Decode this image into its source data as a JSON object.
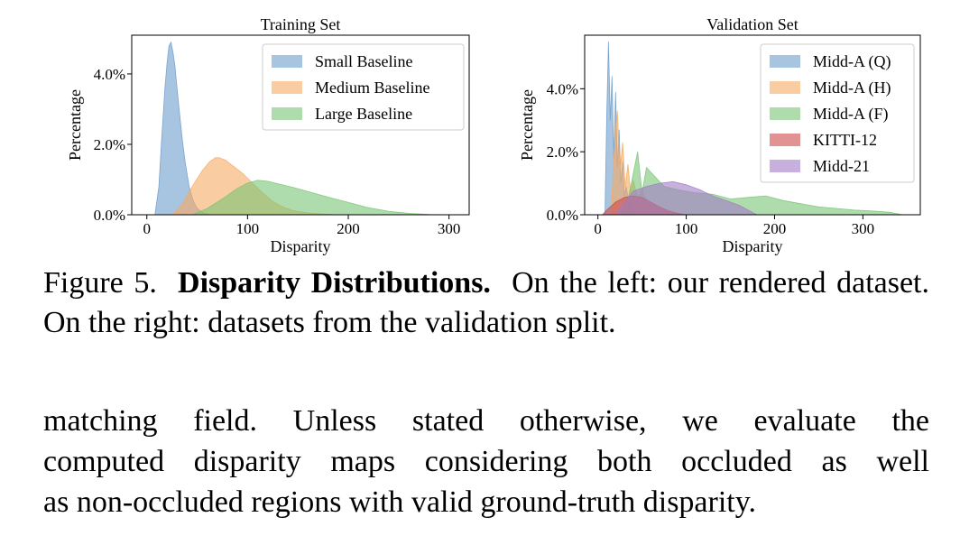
{
  "chart_data": [
    {
      "type": "area",
      "title": "Training Set",
      "xlabel": "Disparity",
      "ylabel": "Percentage",
      "xlim": [
        -15,
        320
      ],
      "ylim": [
        0,
        5.1
      ],
      "xticks": [
        0,
        100,
        200,
        300
      ],
      "yticks": [
        0.0,
        2.0,
        4.0
      ],
      "ytick_labels": [
        "0.0%",
        "2.0%",
        "4.0%"
      ],
      "legend": "top-right",
      "grid": false,
      "series": [
        {
          "name": "Small Baseline",
          "color": "#6d9ccb",
          "x": [
            8,
            12,
            15,
            18,
            20,
            22,
            24,
            26,
            28,
            30,
            32,
            35,
            38,
            42,
            46,
            50,
            55,
            60,
            65
          ],
          "y": [
            0.0,
            0.8,
            2.3,
            3.6,
            4.3,
            4.8,
            4.9,
            4.6,
            4.2,
            3.6,
            3.0,
            2.2,
            1.5,
            0.8,
            0.4,
            0.18,
            0.07,
            0.02,
            0.0
          ]
        },
        {
          "name": "Medium Baseline",
          "color": "#f7aa62",
          "x": [
            25,
            35,
            45,
            55,
            62,
            68,
            72,
            78,
            85,
            95,
            105,
            115,
            125,
            135,
            145,
            160,
            175,
            190
          ],
          "y": [
            0.0,
            0.3,
            0.8,
            1.25,
            1.5,
            1.62,
            1.62,
            1.55,
            1.4,
            1.18,
            0.9,
            0.62,
            0.38,
            0.22,
            0.12,
            0.05,
            0.02,
            0.0
          ]
        },
        {
          "name": "Large Baseline",
          "color": "#79c574",
          "x": [
            45,
            60,
            75,
            90,
            100,
            110,
            120,
            130,
            145,
            160,
            180,
            200,
            220,
            240,
            260,
            280,
            300
          ],
          "y": [
            0.0,
            0.18,
            0.45,
            0.75,
            0.9,
            0.98,
            0.95,
            0.88,
            0.78,
            0.66,
            0.5,
            0.35,
            0.2,
            0.1,
            0.04,
            0.01,
            0.0
          ]
        }
      ]
    },
    {
      "type": "area",
      "title": "Validation Set",
      "xlabel": "Disparity",
      "ylabel": "Percentage",
      "xlim": [
        -15,
        365
      ],
      "ylim": [
        0,
        5.7
      ],
      "xticks": [
        0,
        100,
        200,
        300
      ],
      "yticks": [
        0.0,
        2.0,
        4.0
      ],
      "ytick_labels": [
        "0.0%",
        "2.0%",
        "4.0%"
      ],
      "legend": "top-right",
      "grid": false,
      "series": [
        {
          "name": "Midd-A (Q)",
          "color": "#6d9ccb",
          "x": [
            8,
            10,
            12,
            14,
            16,
            18,
            20,
            22,
            24,
            26,
            28,
            30,
            32,
            35,
            40,
            45,
            50
          ],
          "y": [
            0.0,
            3.2,
            5.5,
            3.0,
            4.4,
            1.8,
            3.9,
            1.5,
            2.7,
            1.0,
            1.7,
            0.6,
            0.9,
            0.4,
            0.2,
            0.05,
            0.0
          ]
        },
        {
          "name": "Midd-A (H)",
          "color": "#f7aa62",
          "x": [
            15,
            18,
            22,
            25,
            28,
            31,
            34,
            37,
            40,
            45,
            50,
            55,
            60,
            70,
            80,
            90
          ],
          "y": [
            0.0,
            1.8,
            3.3,
            1.4,
            2.3,
            0.9,
            1.6,
            0.7,
            1.1,
            0.5,
            0.8,
            0.4,
            0.35,
            0.2,
            0.1,
            0.0
          ]
        },
        {
          "name": "Midd-A (F)",
          "color": "#79c574",
          "x": [
            25,
            35,
            45,
            50,
            55,
            65,
            75,
            90,
            110,
            130,
            150,
            170,
            190,
            210,
            230,
            250,
            270,
            290,
            310,
            330,
            345
          ],
          "y": [
            0.0,
            0.6,
            2.0,
            0.7,
            1.5,
            1.2,
            0.9,
            0.8,
            0.7,
            0.65,
            0.5,
            0.55,
            0.6,
            0.45,
            0.35,
            0.25,
            0.2,
            0.15,
            0.12,
            0.08,
            0.0
          ]
        },
        {
          "name": "KITTI-12",
          "color": "#cf4a4a",
          "x": [
            5,
            10,
            20,
            30,
            40,
            50,
            60,
            70,
            80,
            90,
            100
          ],
          "y": [
            0.0,
            0.15,
            0.4,
            0.55,
            0.6,
            0.55,
            0.4,
            0.25,
            0.12,
            0.05,
            0.0
          ]
        },
        {
          "name": "Midd-21",
          "color": "#a27bc6",
          "x": [
            20,
            30,
            40,
            55,
            70,
            85,
            100,
            115,
            130,
            145,
            160,
            170,
            180
          ],
          "y": [
            0.0,
            0.4,
            0.75,
            0.9,
            1.0,
            1.05,
            0.95,
            0.8,
            0.6,
            0.45,
            0.3,
            0.15,
            0.0
          ]
        }
      ]
    }
  ],
  "caption": {
    "label": "Figure 5.",
    "title": "Disparity Distributions.",
    "text": "On the left: our rendered dataset. On the right: datasets from the validation split."
  },
  "body_lines": [
    "matching field. Unless stated otherwise, we evaluate the",
    "computed disparity maps considering both occluded as well",
    "as non-occluded regions with valid ground-truth disparity."
  ]
}
